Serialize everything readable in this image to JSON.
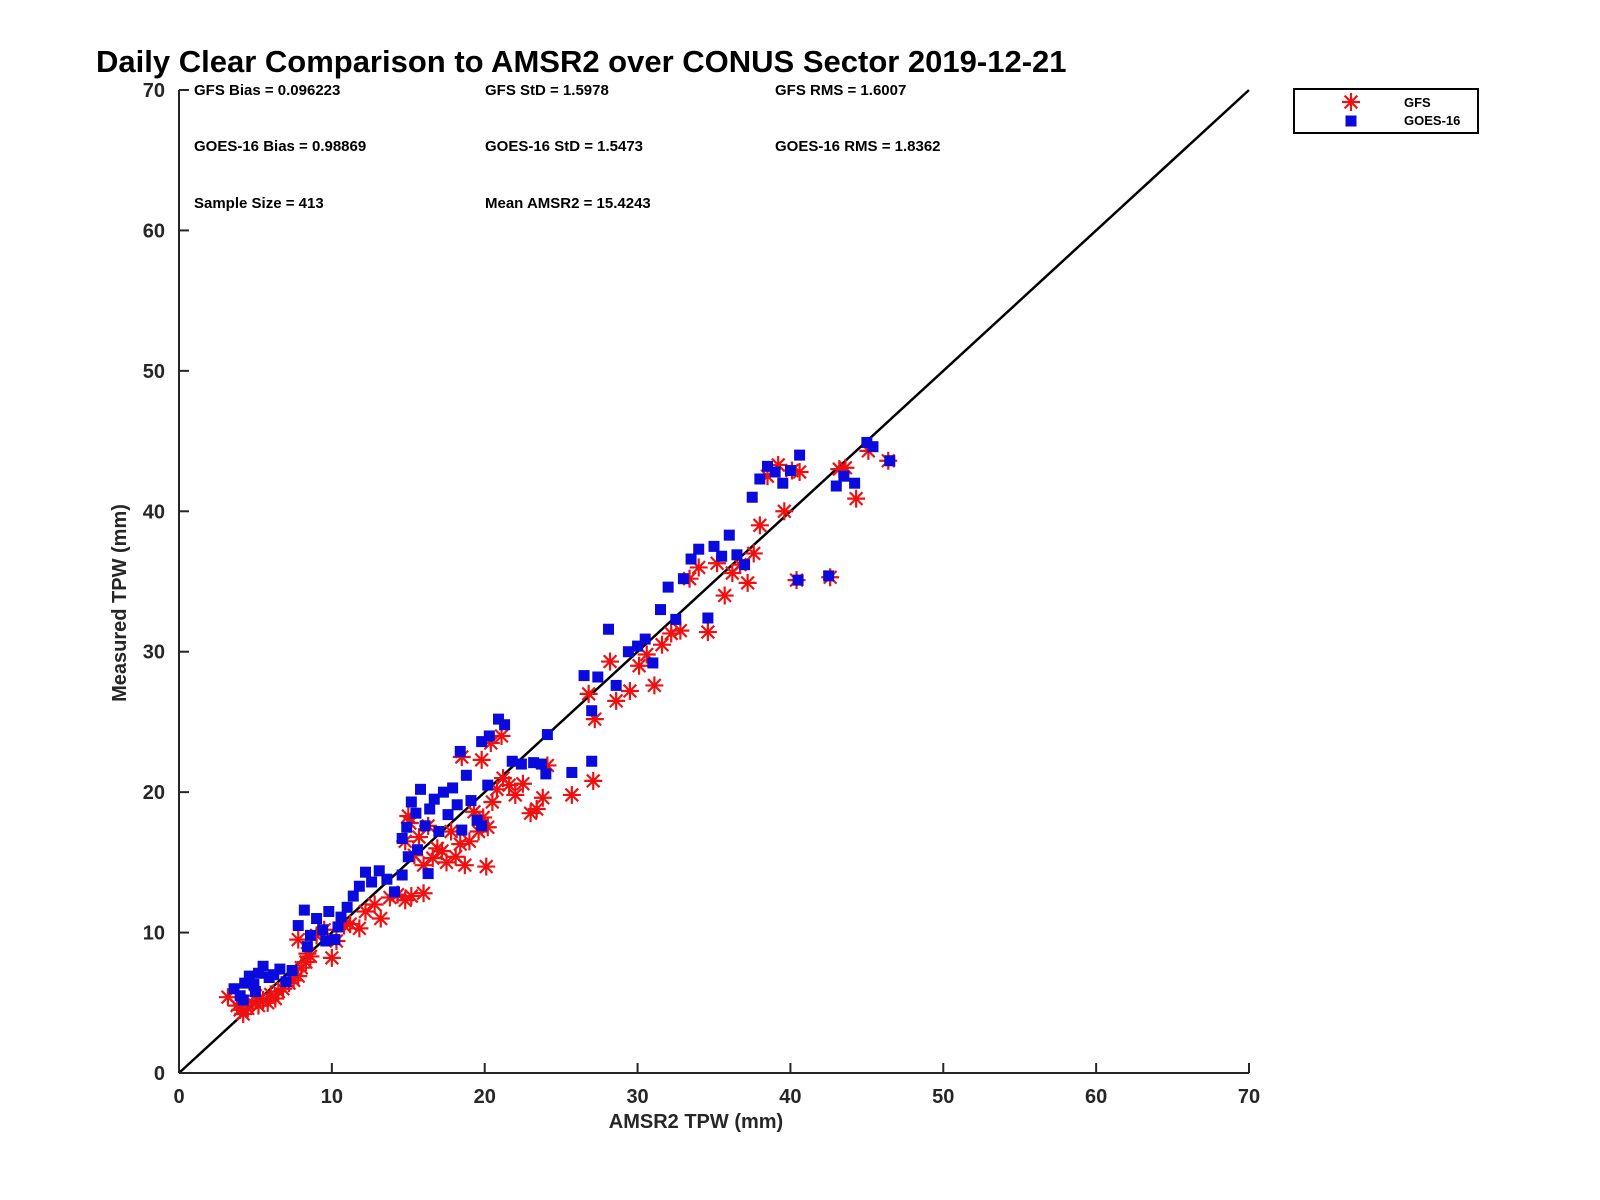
{
  "chart_data": {
    "type": "scatter",
    "title": "Daily Clear Comparison to AMSR2 over CONUS Sector 2019-12-21",
    "xlabel": "AMSR2 TPW (mm)",
    "ylabel": "Measured TPW (mm)",
    "xlim": [
      0,
      70
    ],
    "ylim": [
      0,
      70
    ],
    "xticks": [
      "0",
      "10",
      "20",
      "30",
      "40",
      "50",
      "60",
      "70"
    ],
    "yticks": [
      "0",
      "10",
      "20",
      "30",
      "40",
      "50",
      "60",
      "70"
    ],
    "grid": false,
    "legend_position": "top-right outside",
    "stats": {
      "gfs_bias": "GFS Bias = 0.096223",
      "gfs_std": "GFS StD = 1.5978",
      "gfs_rms": "GFS RMS = 1.6007",
      "goes_bias": "GOES-16 Bias = 0.98869",
      "goes_std": "GOES-16 StD = 1.5473",
      "goes_rms": "GOES-16 RMS = 1.8362",
      "sample_size": "Sample Size = 413",
      "mean_amsr2": "Mean AMSR2 = 15.4243"
    },
    "reference_line": {
      "type": "one-to-one",
      "color": "#000000"
    },
    "series": [
      {
        "name": "GFS",
        "marker": "asterisk",
        "color": "#ee1111",
        "points": [
          [
            3.2,
            5.4
          ],
          [
            3.8,
            4.8
          ],
          [
            4.2,
            4.2
          ],
          [
            4.5,
            4.6
          ],
          [
            4.8,
            5.0
          ],
          [
            5.2,
            4.8
          ],
          [
            5.5,
            5.2
          ],
          [
            5.8,
            5.0
          ],
          [
            6.0,
            5.6
          ],
          [
            6.3,
            5.3
          ],
          [
            6.5,
            5.8
          ],
          [
            6.8,
            6.0
          ],
          [
            7.2,
            6.4
          ],
          [
            7.5,
            6.6
          ],
          [
            7.8,
            6.9
          ],
          [
            8.0,
            7.5
          ],
          [
            8.3,
            7.9
          ],
          [
            8.6,
            8.3
          ],
          [
            5.0,
            5.5
          ],
          [
            4.0,
            4.5
          ],
          [
            7.8,
            9.5
          ],
          [
            8.4,
            8.5
          ],
          [
            9.0,
            9.8
          ],
          [
            9.5,
            10.2
          ],
          [
            10.0,
            8.2
          ],
          [
            10.3,
            9.4
          ],
          [
            10.8,
            10.5
          ],
          [
            11.2,
            10.6
          ],
          [
            11.8,
            10.3
          ],
          [
            12.2,
            11.5
          ],
          [
            12.8,
            12.0
          ],
          [
            13.2,
            11.0
          ],
          [
            13.8,
            12.5
          ],
          [
            14.3,
            12.7
          ],
          [
            14.8,
            12.3
          ],
          [
            15.2,
            12.6
          ],
          [
            16.0,
            12.8
          ],
          [
            14.8,
            16.5
          ],
          [
            15.1,
            17.8
          ],
          [
            15.4,
            15.5
          ],
          [
            15.7,
            16.8
          ],
          [
            16.0,
            14.8
          ],
          [
            16.3,
            17.6
          ],
          [
            16.6,
            15.3
          ],
          [
            16.9,
            16.0
          ],
          [
            17.2,
            15.8
          ],
          [
            17.5,
            15.0
          ],
          [
            17.8,
            17.2
          ],
          [
            18.1,
            15.4
          ],
          [
            18.4,
            16.3
          ],
          [
            18.7,
            14.8
          ],
          [
            19.0,
            16.5
          ],
          [
            19.3,
            18.6
          ],
          [
            19.6,
            17.2
          ],
          [
            19.9,
            18.2
          ],
          [
            20.2,
            17.5
          ],
          [
            20.5,
            19.3
          ],
          [
            20.8,
            20.2
          ],
          [
            21.2,
            21.0
          ],
          [
            21.6,
            20.5
          ],
          [
            22.0,
            19.8
          ],
          [
            22.5,
            20.6
          ],
          [
            23.0,
            18.5
          ],
          [
            23.4,
            18.8
          ],
          [
            23.8,
            19.6
          ],
          [
            24.1,
            21.9
          ],
          [
            20.1,
            14.7
          ],
          [
            15.0,
            18.3
          ],
          [
            18.5,
            22.5
          ],
          [
            19.8,
            22.3
          ],
          [
            20.4,
            23.5
          ],
          [
            21.1,
            24.0
          ],
          [
            25.7,
            19.8
          ],
          [
            27.1,
            20.8
          ],
          [
            26.8,
            27.0
          ],
          [
            27.2,
            25.2
          ],
          [
            28.2,
            29.3
          ],
          [
            28.6,
            26.5
          ],
          [
            29.5,
            27.2
          ],
          [
            30.1,
            29.0
          ],
          [
            30.6,
            29.8
          ],
          [
            31.1,
            27.6
          ],
          [
            31.6,
            30.5
          ],
          [
            32.2,
            31.3
          ],
          [
            32.8,
            31.5
          ],
          [
            33.4,
            35.2
          ],
          [
            34.0,
            36.0
          ],
          [
            34.6,
            31.4
          ],
          [
            35.2,
            36.3
          ],
          [
            35.7,
            34.0
          ],
          [
            36.2,
            35.6
          ],
          [
            36.7,
            36.2
          ],
          [
            37.2,
            34.9
          ],
          [
            37.6,
            37.0
          ],
          [
            38.0,
            39.0
          ],
          [
            38.5,
            42.5
          ],
          [
            39.2,
            43.3
          ],
          [
            39.6,
            40.0
          ],
          [
            40.1,
            42.9
          ],
          [
            40.6,
            42.8
          ],
          [
            43.2,
            43.0
          ],
          [
            43.6,
            43.1
          ],
          [
            44.3,
            40.9
          ],
          [
            45.1,
            44.3
          ],
          [
            46.4,
            43.6
          ],
          [
            40.4,
            35.1
          ],
          [
            42.6,
            35.3
          ]
        ]
      },
      {
        "name": "GOES-16",
        "marker": "square",
        "color": "#0a0adc",
        "points": [
          [
            3.6,
            6.0
          ],
          [
            4.0,
            5.5
          ],
          [
            4.3,
            6.4
          ],
          [
            4.6,
            6.9
          ],
          [
            4.9,
            6.3
          ],
          [
            5.2,
            7.1
          ],
          [
            5.5,
            7.6
          ],
          [
            5.9,
            6.8
          ],
          [
            6.2,
            7.0
          ],
          [
            6.6,
            7.4
          ],
          [
            7.0,
            6.5
          ],
          [
            7.4,
            7.3
          ],
          [
            5.0,
            5.8
          ],
          [
            4.2,
            5.2
          ],
          [
            7.8,
            10.5
          ],
          [
            8.2,
            11.6
          ],
          [
            8.6,
            9.8
          ],
          [
            9.0,
            11.0
          ],
          [
            9.4,
            10.2
          ],
          [
            9.8,
            11.5
          ],
          [
            10.2,
            9.5
          ],
          [
            10.6,
            11.1
          ],
          [
            11.0,
            11.8
          ],
          [
            11.4,
            12.6
          ],
          [
            11.8,
            13.3
          ],
          [
            12.2,
            14.3
          ],
          [
            12.6,
            13.6
          ],
          [
            13.1,
            14.4
          ],
          [
            13.6,
            13.8
          ],
          [
            14.1,
            12.9
          ],
          [
            14.6,
            14.1
          ],
          [
            8.4,
            9.0
          ],
          [
            9.6,
            9.4
          ],
          [
            10.4,
            10.4
          ],
          [
            14.6,
            16.7
          ],
          [
            14.9,
            17.5
          ],
          [
            15.2,
            19.3
          ],
          [
            15.5,
            18.5
          ],
          [
            15.8,
            20.2
          ],
          [
            16.1,
            17.6
          ],
          [
            16.4,
            18.8
          ],
          [
            16.7,
            19.5
          ],
          [
            17.0,
            17.2
          ],
          [
            17.3,
            20.0
          ],
          [
            17.6,
            18.4
          ],
          [
            17.9,
            20.3
          ],
          [
            18.2,
            19.1
          ],
          [
            18.5,
            17.3
          ],
          [
            18.8,
            21.2
          ],
          [
            19.1,
            19.4
          ],
          [
            19.5,
            18.0
          ],
          [
            19.8,
            17.6
          ],
          [
            20.2,
            20.5
          ],
          [
            15.0,
            15.4
          ],
          [
            15.6,
            15.9
          ],
          [
            16.3,
            14.2
          ],
          [
            18.4,
            22.9
          ],
          [
            19.8,
            23.6
          ],
          [
            20.3,
            24.0
          ],
          [
            20.9,
            25.2
          ],
          [
            21.3,
            24.8
          ],
          [
            21.8,
            22.2
          ],
          [
            22.4,
            22.0
          ],
          [
            23.2,
            22.1
          ],
          [
            23.7,
            22.0
          ],
          [
            24.0,
            21.3
          ],
          [
            24.1,
            24.1
          ],
          [
            25.7,
            21.4
          ],
          [
            27.0,
            22.2
          ],
          [
            26.5,
            28.3
          ],
          [
            27.0,
            25.8
          ],
          [
            27.4,
            28.2
          ],
          [
            28.1,
            31.6
          ],
          [
            28.6,
            27.6
          ],
          [
            29.4,
            30.0
          ],
          [
            30.0,
            30.4
          ],
          [
            30.5,
            30.9
          ],
          [
            31.0,
            29.2
          ],
          [
            31.5,
            33.0
          ],
          [
            32.0,
            34.6
          ],
          [
            32.5,
            32.3
          ],
          [
            33.0,
            35.2
          ],
          [
            33.5,
            36.6
          ],
          [
            34.0,
            37.3
          ],
          [
            34.6,
            32.4
          ],
          [
            35.0,
            37.5
          ],
          [
            35.5,
            36.8
          ],
          [
            36.0,
            38.3
          ],
          [
            36.5,
            36.9
          ],
          [
            37.0,
            36.2
          ],
          [
            37.5,
            41.0
          ],
          [
            38.0,
            42.3
          ],
          [
            38.5,
            43.2
          ],
          [
            39.0,
            42.8
          ],
          [
            39.5,
            42.0
          ],
          [
            40.0,
            42.9
          ],
          [
            40.6,
            44.0
          ],
          [
            43.0,
            41.8
          ],
          [
            43.5,
            42.5
          ],
          [
            44.2,
            42.0
          ],
          [
            45.0,
            44.9
          ],
          [
            45.4,
            44.6
          ],
          [
            46.5,
            43.6
          ],
          [
            40.5,
            35.1
          ],
          [
            42.5,
            35.4
          ]
        ]
      }
    ]
  }
}
